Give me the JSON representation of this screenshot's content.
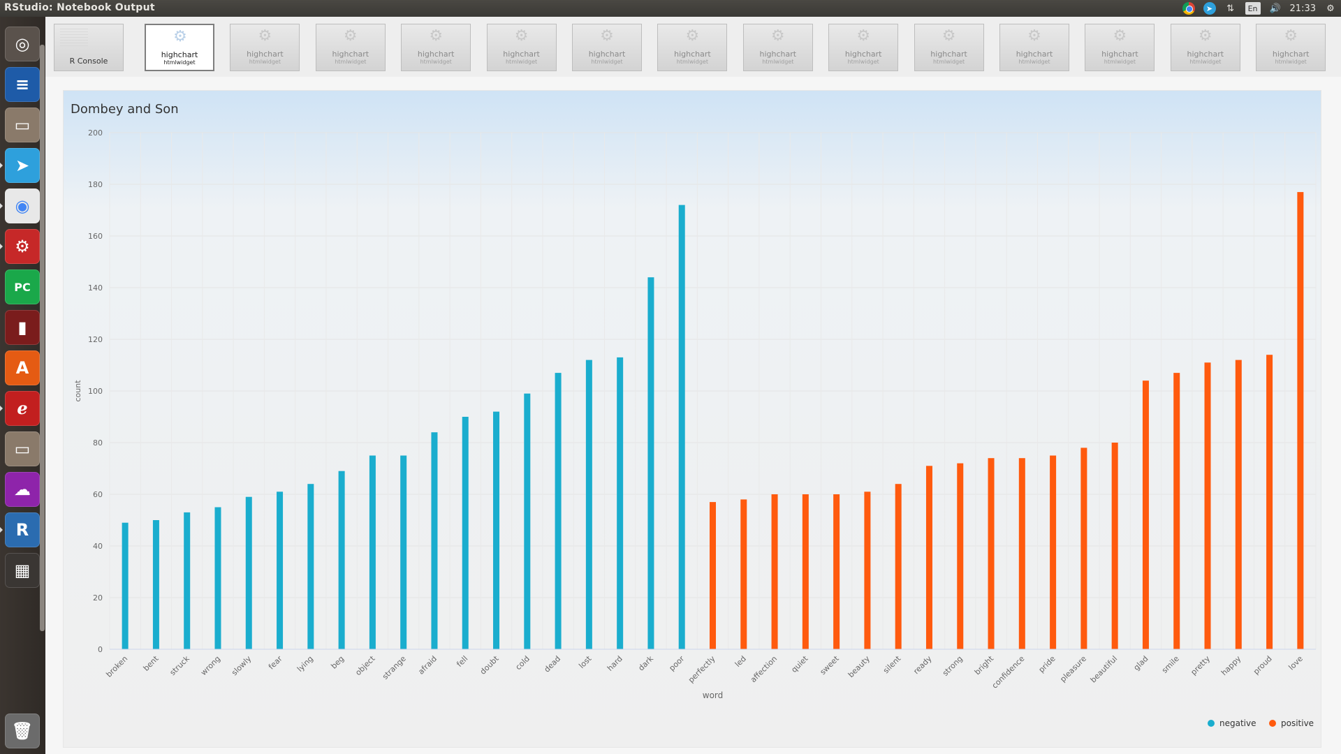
{
  "window": {
    "title": "RStudio: Notebook Output"
  },
  "top_panel": {
    "clock": "21:33",
    "keyboard_layout": "En",
    "tray_icons": [
      "chrome-icon",
      "telegram-icon",
      "network-arrows-icon",
      "keyboard-layout-icon",
      "volume-icon",
      "settings-gear-icon"
    ]
  },
  "launcher": {
    "items": [
      {
        "name": "ubuntu-dash-icon",
        "color": "#5a524c"
      },
      {
        "name": "libreoffice-writer-icon",
        "color": "#1e5ba8"
      },
      {
        "name": "file-manager-icon",
        "color": "#8a7a6a"
      },
      {
        "name": "telegram-icon",
        "color": "#2ea0dc"
      },
      {
        "name": "chrome-icon",
        "color": "#e8e8e8"
      },
      {
        "name": "system-settings-icon",
        "color": "#c62828"
      },
      {
        "name": "pycharm-icon",
        "color": "#1aa84a"
      },
      {
        "name": "terminal-icon",
        "color": "#7a1c1c"
      },
      {
        "name": "software-center-icon",
        "color": "#e55b13"
      },
      {
        "name": "document-viewer-icon",
        "color": "#c21f1f"
      },
      {
        "name": "archive-manager-icon",
        "color": "#8a7a6a"
      },
      {
        "name": "chat-client-icon",
        "color": "#8e24aa"
      },
      {
        "name": "rstudio-icon",
        "color": "#2b6cb0"
      },
      {
        "name": "workspace-switcher-icon",
        "color": "#3a3633"
      },
      {
        "name": "trash-icon",
        "color": "#6b6b6b"
      }
    ]
  },
  "thumbnails": {
    "console": {
      "label": "R Console"
    },
    "items": [
      {
        "title": "highchart",
        "subtitle": "htmlwidget",
        "active": true
      },
      {
        "title": "highchart",
        "subtitle": "htmlwidget",
        "active": false
      },
      {
        "title": "highchart",
        "subtitle": "htmlwidget",
        "active": false
      },
      {
        "title": "highchart",
        "subtitle": "htmlwidget",
        "active": false
      },
      {
        "title": "highchart",
        "subtitle": "htmlwidget",
        "active": false
      },
      {
        "title": "highchart",
        "subtitle": "htmlwidget",
        "active": false
      },
      {
        "title": "highchart",
        "subtitle": "htmlwidget",
        "active": false
      },
      {
        "title": "highchart",
        "subtitle": "htmlwidget",
        "active": false
      },
      {
        "title": "highchart",
        "subtitle": "htmlwidget",
        "active": false
      },
      {
        "title": "highchart",
        "subtitle": "htmlwidget",
        "active": false
      },
      {
        "title": "highchart",
        "subtitle": "htmlwidget",
        "active": false
      },
      {
        "title": "highchart",
        "subtitle": "htmlwidget",
        "active": false
      },
      {
        "title": "highchart",
        "subtitle": "htmlwidget",
        "active": false
      },
      {
        "title": "highchart",
        "subtitle": "htmlwidget",
        "active": false
      }
    ]
  },
  "chart_data": {
    "type": "bar",
    "title": "Dombey and Son",
    "xlabel": "word",
    "ylabel": "count",
    "ylim": [
      0,
      200
    ],
    "yticks": [
      0,
      20,
      40,
      60,
      80,
      100,
      120,
      140,
      160,
      180,
      200
    ],
    "legend": "bottom-right",
    "series": [
      {
        "name": "negative",
        "color": "#1aadce",
        "categories": [
          "broken",
          "bent",
          "struck",
          "wrong",
          "slowly",
          "fear",
          "lying",
          "beg",
          "object",
          "strange",
          "afraid",
          "fell",
          "doubt",
          "cold",
          "dead",
          "lost",
          "hard",
          "dark",
          "poor"
        ],
        "values": [
          49,
          50,
          53,
          55,
          59,
          61,
          64,
          69,
          75,
          75,
          84,
          90,
          92,
          99,
          107,
          112,
          113,
          144,
          172
        ]
      },
      {
        "name": "positive",
        "color": "#ff5a0e",
        "categories": [
          "perfectly",
          "led",
          "affection",
          "quiet",
          "sweet",
          "beauty",
          "silent",
          "ready",
          "strong",
          "bright",
          "confidence",
          "pride",
          "pleasure",
          "beautiful",
          "glad",
          "smile",
          "pretty",
          "happy",
          "proud",
          "love"
        ],
        "values": [
          57,
          58,
          60,
          60,
          60,
          61,
          64,
          71,
          72,
          74,
          74,
          75,
          78,
          80,
          104,
          107,
          111,
          112,
          114,
          177
        ]
      }
    ]
  }
}
